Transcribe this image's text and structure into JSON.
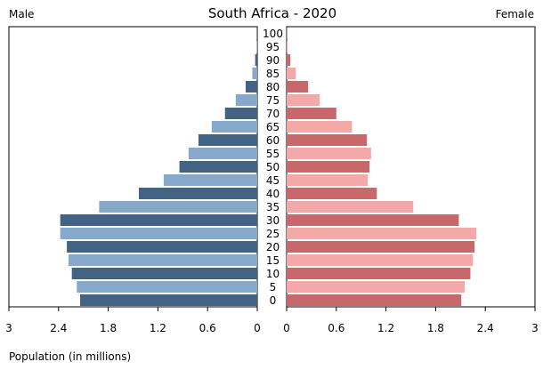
{
  "chart_data": {
    "type": "bar",
    "title": "South Africa - 2020",
    "left_label": "Male",
    "right_label": "Female",
    "xlabel": "Population (in millions)",
    "xlim": [
      0,
      3
    ],
    "x_ticks": [
      "3",
      "2.4",
      "1.8",
      "1.2",
      "0.6",
      "0"
    ],
    "x_ticks_right": [
      "0",
      "0.6",
      "1.2",
      "1.8",
      "2.4",
      "3"
    ],
    "age_groups": [
      "0",
      "5",
      "10",
      "15",
      "20",
      "25",
      "30",
      "35",
      "40",
      "45",
      "50",
      "55",
      "60",
      "65",
      "70",
      "75",
      "80",
      "85",
      "90",
      "95",
      "100"
    ],
    "series": [
      {
        "name": "Male",
        "values": [
          2.14,
          2.18,
          2.24,
          2.28,
          2.3,
          2.38,
          2.38,
          1.91,
          1.43,
          1.13,
          0.94,
          0.83,
          0.71,
          0.55,
          0.39,
          0.26,
          0.14,
          0.06,
          0.025,
          0.008,
          0.002
        ]
      },
      {
        "name": "Female",
        "values": [
          2.11,
          2.15,
          2.22,
          2.25,
          2.27,
          2.29,
          2.08,
          1.53,
          1.09,
          0.98,
          1.0,
          1.02,
          0.97,
          0.79,
          0.6,
          0.4,
          0.26,
          0.11,
          0.045,
          0.012,
          0.003
        ]
      }
    ],
    "colors": {
      "male_dark": "#436385",
      "male_light": "#87a9cb",
      "female_dark": "#c9686a",
      "female_light": "#f2a9a7"
    }
  }
}
